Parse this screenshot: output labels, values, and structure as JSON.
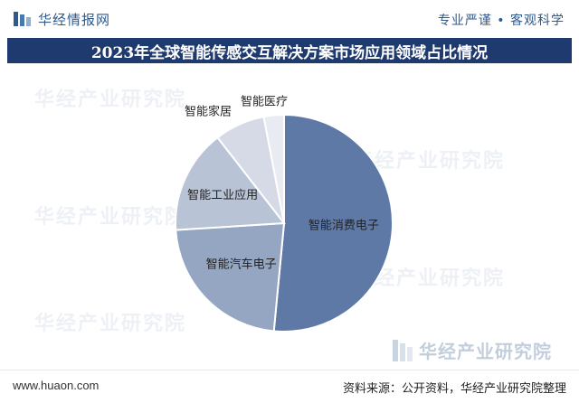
{
  "header": {
    "brand_name": "华经情报网",
    "tagline": "专业严谨 • 客观科学"
  },
  "title": "2023年全球智能传感交互解决方案市场应用领域占比情况",
  "chart_data": {
    "type": "pie",
    "title": "2023年全球智能传感交互解决方案市场应用领域占比情况",
    "labels": [
      "智能消费电子",
      "智能汽车电子",
      "智能工业应用",
      "智能家居",
      "智能医疗"
    ],
    "values": [
      51.5,
      22.5,
      15.5,
      7.5,
      3.0
    ],
    "colors": [
      "#5f79a6",
      "#95a6c3",
      "#b9c3d6",
      "#d5dae6",
      "#e8ebf1"
    ],
    "start_angle_deg": 0,
    "direction": "clockwise"
  },
  "watermark": {
    "text": "华经产业研究院",
    "brand_name": "华经产业研究院"
  },
  "footer": {
    "url": "www.huaon.com",
    "source": "资料来源：公开资料，华经产业研究院整理"
  }
}
